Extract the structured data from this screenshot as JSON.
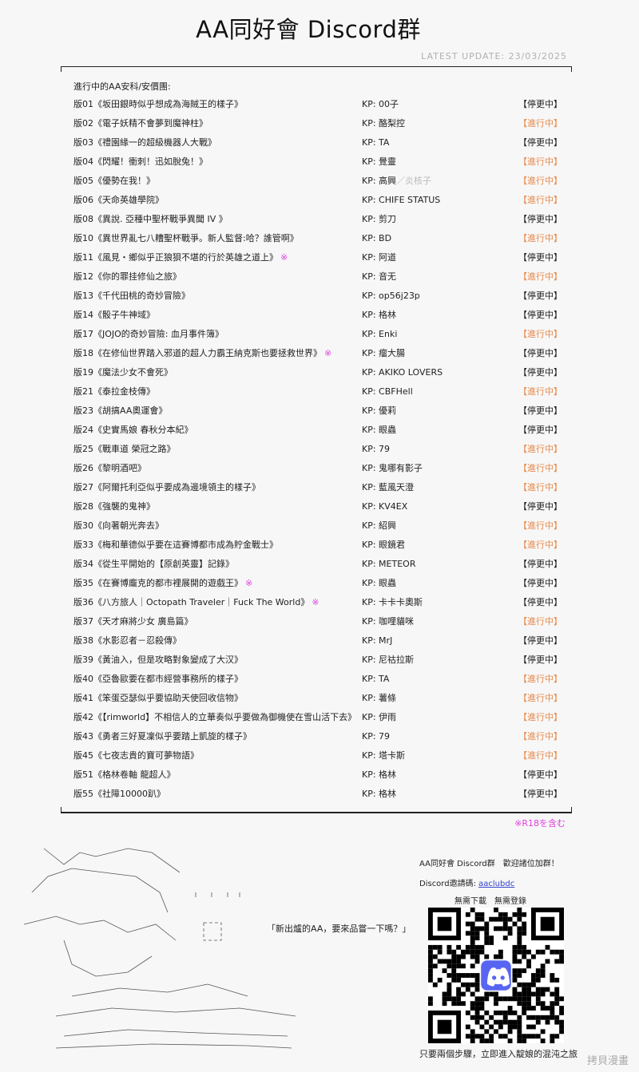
{
  "header": {
    "title": "AA同好會 Discord群",
    "update": "LATEST UPDATE: 23/03/2025"
  },
  "list": {
    "heading": "進行中的AA安科/安價團:",
    "r18_mark": "※",
    "r18_note": "※R18を含む",
    "items": [
      {
        "title": "版01《坂田銀時似乎想成為海賊王的樣子》",
        "kp": "KP: 00子",
        "status": "【停更中】",
        "active": false
      },
      {
        "title": "版02《電子妖精不會夢到魔神柱》",
        "kp": "KP: 酪梨控",
        "status": "【進行中】",
        "active": true
      },
      {
        "title": "版03《禮園緣一的超級機器人大戰》",
        "kp": "KP: TA",
        "status": "【停更中】",
        "active": false
      },
      {
        "title": "版04《閃耀！衝刺！迅如脫兔！》",
        "kp": "KP: 覺靈",
        "status": "【進行中】",
        "active": true
      },
      {
        "title": "版05《優勢在我！》",
        "kp": "KP: 高興",
        "kp_sub": "／炎核子",
        "status": "【進行中】",
        "active": true
      },
      {
        "title": "版06《天命英雄學院》",
        "kp": "KP: CHIFE STATUS",
        "status": "【進行中】",
        "active": true
      },
      {
        "title": "版08《異說. 亞種中聖杯戰爭異聞 IV 》",
        "kp": "KP: 剪刀",
        "status": "【停更中】",
        "active": false
      },
      {
        "title": "版10《異世界亂七八糟聖杯戰爭。新人監督:哈？誰管啊》",
        "kp": "KP: BD",
        "status": "【進行中】",
        "active": true
      },
      {
        "title": "版11《風見・鄉似乎正狼狽不堪的行於英雄之道上》",
        "r18": true,
        "kp": "KP: 阿道",
        "status": "【停更中】",
        "active": false
      },
      {
        "title": "版12《你的罪挂修仙之旅》",
        "kp": "KP: 音无",
        "status": "【進行中】",
        "active": true
      },
      {
        "title": "版13《千代田桃的奇妙冒險》",
        "kp": "KP: op56j23p",
        "status": "【停更中】",
        "active": false
      },
      {
        "title": "版14《骰子牛神域》",
        "kp": "KP: 格林",
        "status": "【停更中】",
        "active": false
      },
      {
        "title": "版17《JOJO的奇妙冒險: 血月事件簿》",
        "kp": "KP: Enki",
        "status": "【進行中】",
        "active": true
      },
      {
        "title": "版18《在修仙世界踏入邪道的超人力霸王納克斯也要拯救世界》",
        "r18": true,
        "kp": "KP: 瘤大腸",
        "status": "【停更中】",
        "active": false
      },
      {
        "title": "版19《魔法少女不會死》",
        "kp": "KP: AKIKO LOVERS",
        "status": "【停更中】",
        "active": false
      },
      {
        "title": "版21《泰拉金枝傳》",
        "kp": "KP: CBFHell",
        "status": "【進行中】",
        "active": true
      },
      {
        "title": "版23《胡搞AA奧運會》",
        "kp": "KP: 優莉",
        "status": "【停更中】",
        "active": false
      },
      {
        "title": "版24《史實馬娘 春秋分本紀》",
        "kp": "KP: 眼蟲",
        "status": "【停更中】",
        "active": false
      },
      {
        "title": "版25《戰車道 榮冠之路》",
        "kp": "KP: 79",
        "status": "【進行中】",
        "active": true
      },
      {
        "title": "版26《黎明酒吧》",
        "kp": "KP: 鬼哪有影子",
        "status": "【進行中】",
        "active": true
      },
      {
        "title": "版27《阿爾托利亞似乎要成為邊境領主的樣子》",
        "kp": "KP: 藍風天澄",
        "status": "【進行中】",
        "active": true
      },
      {
        "title": "版28《強襲的鬼神》",
        "kp": "KP: KV4EX",
        "status": "【停更中】",
        "active": false
      },
      {
        "title": "版30《向著朝光奔去》",
        "kp": "KP: 紹興",
        "status": "【進行中】",
        "active": true
      },
      {
        "title": "版33《梅和華德似乎要在這賽博都市成為貯金戰士》",
        "kp": "KP: 眼鏡君",
        "status": "【進行中】",
        "active": true
      },
      {
        "title": "版34《從生平開始的【原創英靈】記錄》",
        "kp": "KP: METEOR",
        "status": "【停更中】",
        "active": false
      },
      {
        "title": "版35《在賽博龐克的都市裡展開的遊戲王》",
        "r18": true,
        "kp": "KP: 眼蟲",
        "status": "【停更中】",
        "active": false
      },
      {
        "title": "版36《八方旅人｜Octopath Traveler｜Fuck The World》",
        "r18": true,
        "kp": "KP: 卡卡卡奧斯",
        "status": "【停更中】",
        "active": false
      },
      {
        "title": "版37《天才麻將少女 廣島篇》",
        "kp": "KP: 咖哩貓咪",
        "status": "【進行中】",
        "active": true
      },
      {
        "title": "版38《水影忍者－忍殺傳》",
        "kp": "KP: MrJ",
        "status": "【停更中】",
        "active": false
      },
      {
        "title": "版39《黃油入，但是攻略對象變成了大汉》",
        "kp": "KP: 尼祜拉斯",
        "status": "【停更中】",
        "active": false
      },
      {
        "title": "版40《亞魯歐要在都市經營事務所的樣子》",
        "kp": "KP: TA",
        "status": "【進行中】",
        "active": true
      },
      {
        "title": "版41《笨蛋亞瑟似乎要協助天使回收信物》",
        "kp": "KP: 薯條",
        "status": "【進行中】",
        "active": true
      },
      {
        "title": "版42《【rimworld】不相信人的立華奏似乎要做為御機使在雪山活下去》",
        "kp": "KP: 伊雨",
        "status": "【進行中】",
        "active": true
      },
      {
        "title": "版43《勇者三好夏凜似乎要踏上凱旋的樣子》",
        "kp": "KP: 79",
        "status": "【進行中】",
        "active": true
      },
      {
        "title": "版45《七夜志貴的寶可夢物語》",
        "kp": "KP: 塔卡斯",
        "status": "【進行中】",
        "active": true
      },
      {
        "title": "版51《格林卷軸 龍超人》",
        "kp": "KP: 格林",
        "status": "【停更中】",
        "active": false
      },
      {
        "title": "版55《社障10000趴》",
        "kp": "KP: 格林",
        "status": "【停更中】",
        "active": false
      }
    ]
  },
  "footer": {
    "speech": "「新出爐的AA，要來品嘗一下嗎？」",
    "promo": "AA同好會 Discord群　歡迎諸位加群！",
    "invite_label": "Discord邀請碼: ",
    "invite_code": "aaclubdc",
    "no_download": "無需下載　無需登錄",
    "slogan": "只要兩個步驟，立即進入靛娘的混沌之旅",
    "watermark": "拷貝漫畫"
  },
  "colors": {
    "active": "#e8894a",
    "paused": "#222222",
    "r18": "#e040e0",
    "discord": "#5865F2",
    "link": "#3344cc"
  },
  "icons": {
    "qr": "qr-code",
    "discord": "discord-logo-icon"
  }
}
